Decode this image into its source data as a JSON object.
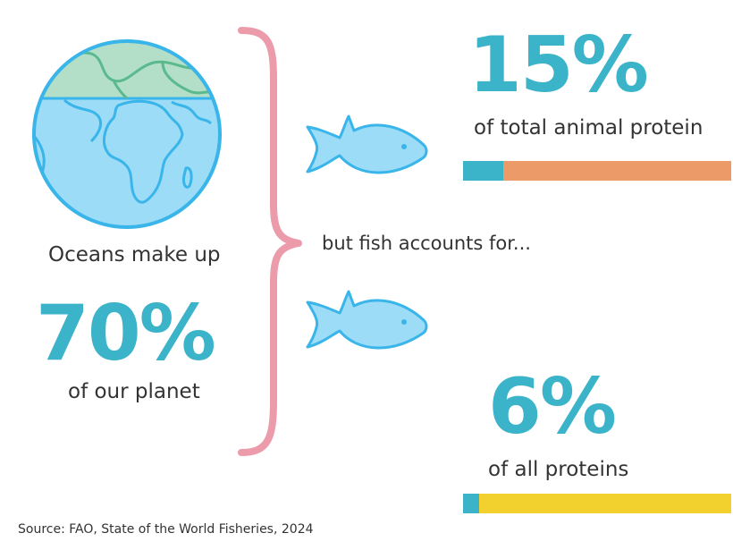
{
  "colors": {
    "teal": "#3bb3c8",
    "ocean": "#9cdcf7",
    "ocean_stroke": "#39b5ea",
    "land_cap": "#b3dfc8",
    "land_stroke": "#5ab98d",
    "brace": "#ec9bab",
    "fish_fill": "#9cdcf7",
    "fish_stroke": "#39b5ea",
    "orange": "#ec9a68",
    "yellow": "#f2d02e"
  },
  "globe": {
    "icon": "globe-icon"
  },
  "left": {
    "caption_top": "Oceans make up",
    "value_text": "70%",
    "caption_bottom": "of our planet"
  },
  "middle": {
    "text": "but fish accounts for..."
  },
  "icons": {
    "brace": "curly-brace-icon",
    "fish": "fish-icon"
  },
  "chart_data": [
    {
      "type": "bar",
      "categories": [
        "of total animal protein"
      ],
      "values": [
        15
      ],
      "value_text": "15%",
      "ylim": [
        0,
        100
      ],
      "colors": {
        "filled": "#3bb3c8",
        "remaining": "#ec9a68"
      }
    },
    {
      "type": "bar",
      "categories": [
        "of all proteins"
      ],
      "values": [
        6
      ],
      "value_text": "6%",
      "ylim": [
        0,
        100
      ],
      "colors": {
        "filled": "#3bb3c8",
        "remaining": "#f2d02e"
      }
    }
  ],
  "source": "Source: FAO, State of the World Fisheries, 2024"
}
